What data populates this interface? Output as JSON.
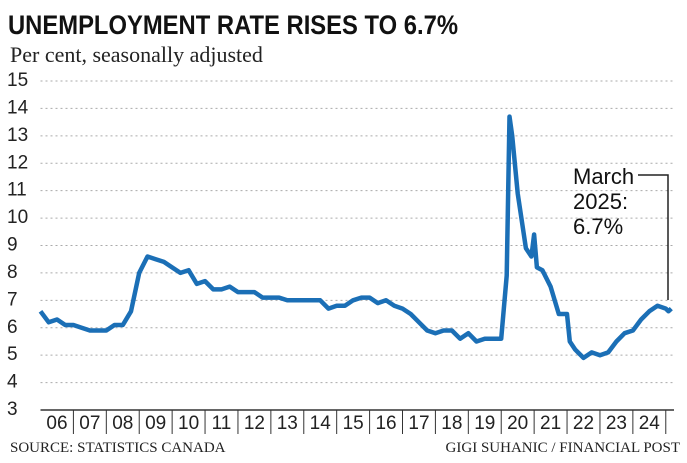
{
  "chart_data": {
    "type": "line",
    "title": "UNEMPLOYMENT RATE RISES TO 6.7%",
    "subtitle": "Per cent, seasonally adjusted",
    "source": "SOURCE: STATISTICS CANADA",
    "credit": "GIGI SUHANIC / FINANCIAL POST",
    "annotation": [
      "March",
      "2025:",
      "6.7%"
    ],
    "x": [
      2006,
      2006.25,
      2006.5,
      2006.75,
      2007,
      2007.25,
      2007.5,
      2007.75,
      2008,
      2008.25,
      2008.5,
      2008.75,
      2009,
      2009.25,
      2009.5,
      2009.75,
      2010,
      2010.25,
      2010.5,
      2010.75,
      2011,
      2011.25,
      2011.5,
      2011.75,
      2012,
      2012.25,
      2012.5,
      2012.75,
      2013,
      2013.25,
      2013.5,
      2013.75,
      2014,
      2014.25,
      2014.5,
      2014.75,
      2015,
      2015.25,
      2015.5,
      2015.75,
      2016,
      2016.25,
      2016.5,
      2016.75,
      2017,
      2017.25,
      2017.5,
      2017.75,
      2018,
      2018.25,
      2018.5,
      2018.75,
      2019,
      2019.25,
      2019.5,
      2019.75,
      2020,
      2020.167,
      2020.25,
      2020.333,
      2020.5,
      2020.75,
      2020.917,
      2021,
      2021.083,
      2021.25,
      2021.5,
      2021.75,
      2022,
      2022.083,
      2022.25,
      2022.5,
      2022.75,
      2023,
      2023.25,
      2023.5,
      2023.75,
      2024,
      2024.25,
      2024.5,
      2024.75,
      2025,
      2025.083,
      2025.167
    ],
    "series": [
      {
        "name": "Unemployment rate",
        "color": "#1b6fb6",
        "values": [
          6.6,
          6.2,
          6.3,
          6.1,
          6.1,
          6.0,
          5.9,
          5.9,
          5.9,
          6.1,
          6.1,
          6.6,
          8.0,
          8.6,
          8.5,
          8.4,
          8.2,
          8.0,
          8.1,
          7.6,
          7.7,
          7.4,
          7.4,
          7.5,
          7.3,
          7.3,
          7.3,
          7.1,
          7.1,
          7.1,
          7.0,
          7.0,
          7.0,
          7.0,
          7.0,
          6.7,
          6.8,
          6.8,
          7.0,
          7.1,
          7.1,
          6.9,
          7.0,
          6.8,
          6.7,
          6.5,
          6.2,
          5.9,
          5.8,
          5.9,
          5.9,
          5.6,
          5.8,
          5.5,
          5.6,
          5.6,
          5.6,
          7.9,
          13.7,
          13.0,
          10.9,
          8.9,
          8.6,
          9.4,
          8.2,
          8.1,
          7.5,
          6.5,
          6.5,
          5.5,
          5.2,
          4.9,
          5.1,
          5.0,
          5.1,
          5.5,
          5.8,
          5.9,
          6.3,
          6.6,
          6.8,
          6.7,
          6.6,
          6.7
        ]
      }
    ],
    "xlim": [
      2006,
      2025.25
    ],
    "xticks": [
      {
        "value": 2006.5,
        "label": "06"
      },
      {
        "value": 2007.5,
        "label": "07"
      },
      {
        "value": 2008.5,
        "label": "08"
      },
      {
        "value": 2009.5,
        "label": "09"
      },
      {
        "value": 2010.5,
        "label": "10"
      },
      {
        "value": 2011.5,
        "label": "11"
      },
      {
        "value": 2012.5,
        "label": "12"
      },
      {
        "value": 2013.5,
        "label": "13"
      },
      {
        "value": 2014.5,
        "label": "14"
      },
      {
        "value": 2015.5,
        "label": "15"
      },
      {
        "value": 2016.5,
        "label": "16"
      },
      {
        "value": 2017.5,
        "label": "17"
      },
      {
        "value": 2018.5,
        "label": "18"
      },
      {
        "value": 2019.5,
        "label": "19"
      },
      {
        "value": 2020.5,
        "label": "20"
      },
      {
        "value": 2021.5,
        "label": "21"
      },
      {
        "value": 2022.5,
        "label": "22"
      },
      {
        "value": 2023.5,
        "label": "23"
      },
      {
        "value": 2024.5,
        "label": "24"
      }
    ],
    "ylim": [
      3,
      15
    ],
    "yticks": [
      3,
      4,
      5,
      6,
      7,
      8,
      9,
      10,
      11,
      12,
      13,
      14,
      15
    ],
    "grid": true
  }
}
